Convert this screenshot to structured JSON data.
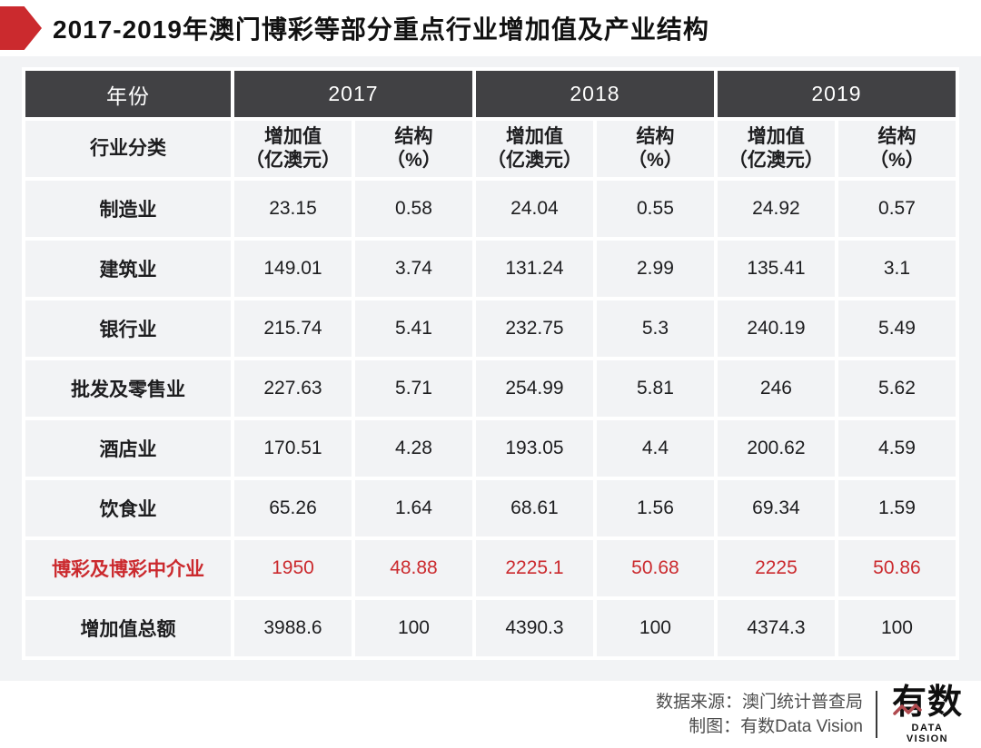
{
  "title": "2017-2019年澳门博彩等部分重点行业增加值及产业结构",
  "colors": {
    "accent_red": "#cb2a2e",
    "header_dark": "#414144",
    "cell_gray": "#f2f3f5",
    "highlight_text_red": "#cb2a2e",
    "logo_zigzag_red": "#b04a4f"
  },
  "chart_data": {
    "type": "table",
    "title": "2017-2019年澳门博彩等部分重点行业增加值及产业结构",
    "group_header": "年份",
    "row_header": "行业分类",
    "col_groups": [
      "2017",
      "2018",
      "2019"
    ],
    "value_header_lines": [
      "增加值",
      "（亿澳元）"
    ],
    "share_header_lines": [
      "结构",
      "（%）"
    ],
    "rows": [
      {
        "label": "制造业",
        "values": [
          "23.15",
          "0.58",
          "24.04",
          "0.55",
          "24.92",
          "0.57"
        ],
        "highlight": false
      },
      {
        "label": "建筑业",
        "values": [
          "149.01",
          "3.74",
          "131.24",
          "2.99",
          "135.41",
          "3.1"
        ],
        "highlight": false
      },
      {
        "label": "银行业",
        "values": [
          "215.74",
          "5.41",
          "232.75",
          "5.3",
          "240.19",
          "5.49"
        ],
        "highlight": false
      },
      {
        "label": "批发及零售业",
        "values": [
          "227.63",
          "5.71",
          "254.99",
          "5.81",
          "246",
          "5.62"
        ],
        "highlight": false
      },
      {
        "label": "酒店业",
        "values": [
          "170.51",
          "4.28",
          "193.05",
          "4.4",
          "200.62",
          "4.59"
        ],
        "highlight": false
      },
      {
        "label": "饮食业",
        "values": [
          "65.26",
          "1.64",
          "68.61",
          "1.56",
          "69.34",
          "1.59"
        ],
        "highlight": false
      },
      {
        "label": "博彩及博彩中介业",
        "values": [
          "1950",
          "48.88",
          "2225.1",
          "50.68",
          "2225",
          "50.86"
        ],
        "highlight": true
      },
      {
        "label": "增加值总额",
        "values": [
          "3988.6",
          "100",
          "4390.3",
          "100",
          "4374.3",
          "100"
        ],
        "highlight": false
      }
    ]
  },
  "footer": {
    "source_label": "数据来源：",
    "source": "澳门统计普查局",
    "credit_label": "制图：",
    "credit": "有数Data Vision",
    "logo_text": "有数",
    "logo_subtext": "DATA VISION"
  }
}
